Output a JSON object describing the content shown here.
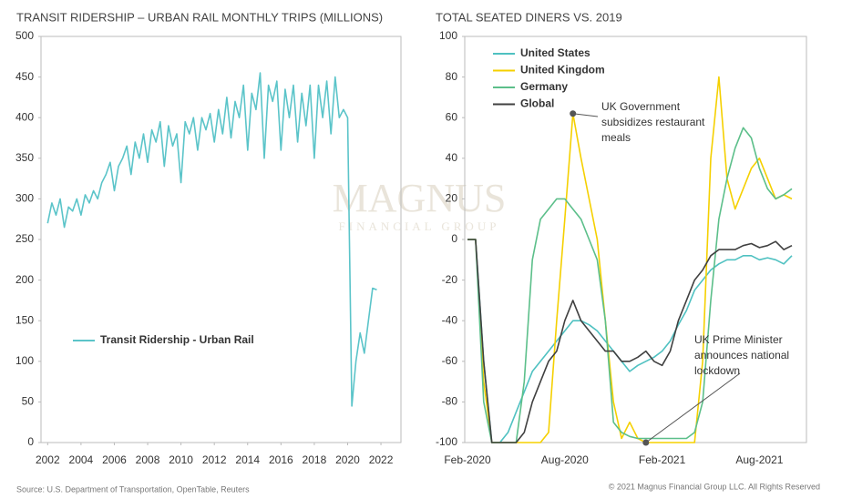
{
  "chart_data": [
    {
      "type": "line",
      "title": "TRANSIT RIDERSHIP – URBAN RAIL MONTHLY TRIPS (MILLIONS)",
      "x": [
        2002,
        2002.25,
        2002.5,
        2002.75,
        2003,
        2003.25,
        2003.5,
        2003.75,
        2004,
        2004.25,
        2004.5,
        2004.75,
        2005,
        2005.25,
        2005.5,
        2005.75,
        2006,
        2006.25,
        2006.5,
        2006.75,
        2007,
        2007.25,
        2007.5,
        2007.75,
        2008,
        2008.25,
        2008.5,
        2008.75,
        2009,
        2009.25,
        2009.5,
        2009.75,
        2010,
        2010.25,
        2010.5,
        2010.75,
        2011,
        2011.25,
        2011.5,
        2011.75,
        2012,
        2012.25,
        2012.5,
        2012.75,
        2013,
        2013.25,
        2013.5,
        2013.75,
        2014,
        2014.25,
        2014.5,
        2014.75,
        2015,
        2015.25,
        2015.5,
        2015.75,
        2016,
        2016.25,
        2016.5,
        2016.75,
        2017,
        2017.25,
        2017.5,
        2017.75,
        2018,
        2018.25,
        2018.5,
        2018.75,
        2019,
        2019.25,
        2019.5,
        2019.75,
        2020,
        2020.25,
        2020.5,
        2020.75,
        2021,
        2021.25,
        2021.5,
        2021.75
      ],
      "series": [
        {
          "name": "Transit Ridership - Urban Rail",
          "color": "#5bc4c9",
          "values": [
            270,
            295,
            280,
            300,
            265,
            290,
            285,
            300,
            280,
            305,
            295,
            310,
            300,
            320,
            330,
            345,
            310,
            340,
            350,
            365,
            330,
            370,
            350,
            380,
            345,
            385,
            370,
            395,
            340,
            390,
            365,
            380,
            320,
            395,
            380,
            400,
            360,
            400,
            385,
            405,
            370,
            410,
            380,
            425,
            375,
            420,
            400,
            440,
            360,
            430,
            410,
            455,
            350,
            440,
            420,
            445,
            360,
            435,
            400,
            440,
            370,
            430,
            390,
            440,
            350,
            440,
            400,
            445,
            380,
            450,
            400,
            410,
            400,
            45,
            100,
            135,
            110,
            150,
            190,
            188
          ]
        }
      ],
      "xlim": [
        2001.6,
        2023.2
      ],
      "xticks": [
        2002,
        2004,
        2006,
        2008,
        2010,
        2012,
        2014,
        2016,
        2018,
        2020,
        2022
      ],
      "ylim": [
        0,
        500
      ],
      "yticks": [
        0,
        50,
        100,
        150,
        200,
        250,
        300,
        350,
        400,
        450,
        500
      ],
      "legend": "lower-left"
    },
    {
      "type": "line",
      "title": "TOTAL SEATED DINERS VS. 2019",
      "categories": [
        "Feb-2020",
        null,
        null,
        null,
        null,
        null,
        null,
        null,
        null,
        null,
        null,
        null,
        "Aug-2020",
        null,
        null,
        null,
        null,
        null,
        null,
        null,
        null,
        null,
        null,
        null,
        "Feb-2021",
        null,
        null,
        null,
        null,
        null,
        null,
        null,
        null,
        null,
        null,
        null,
        "Aug-2021",
        null,
        null,
        null,
        null
      ],
      "series": [
        {
          "name": "United States",
          "color": "#4fc1c1",
          "values": [
            0,
            0,
            -60,
            -100,
            -100,
            -95,
            -85,
            -75,
            -65,
            -60,
            -55,
            -50,
            -45,
            -40,
            -40,
            -42,
            -45,
            -50,
            -55,
            -60,
            -65,
            -62,
            -60,
            -58,
            -55,
            -50,
            -42,
            -35,
            -25,
            -20,
            -15,
            -12,
            -10,
            -10,
            -8,
            -8,
            -10,
            -9,
            -10,
            -12,
            -8
          ]
        },
        {
          "name": "United Kingdom",
          "color": "#f5d000",
          "values": [
            0,
            0,
            -70,
            -100,
            -100,
            -100,
            -100,
            -100,
            -100,
            -100,
            -95,
            -40,
            10,
            62,
            40,
            20,
            0,
            -40,
            -80,
            -98,
            -90,
            -98,
            -100,
            -100,
            -100,
            -100,
            -100,
            -100,
            -100,
            -60,
            40,
            80,
            30,
            15,
            25,
            35,
            40,
            30,
            20,
            22,
            20
          ]
        },
        {
          "name": "Germany",
          "color": "#5cbf8a",
          "values": [
            0,
            0,
            -80,
            -100,
            -100,
            -100,
            -100,
            -70,
            -10,
            10,
            15,
            20,
            20,
            15,
            10,
            0,
            -10,
            -40,
            -90,
            -95,
            -97,
            -98,
            -98,
            -98,
            -98,
            -98,
            -98,
            -98,
            -95,
            -80,
            -30,
            10,
            30,
            45,
            55,
            50,
            35,
            25,
            20,
            22,
            25
          ]
        },
        {
          "name": "Global",
          "color": "#404040",
          "values": [
            0,
            0,
            -60,
            -100,
            -100,
            -100,
            -100,
            -95,
            -80,
            -70,
            -60,
            -55,
            -40,
            -30,
            -40,
            -45,
            -50,
            -55,
            -55,
            -60,
            -60,
            -58,
            -55,
            -60,
            -62,
            -55,
            -40,
            -30,
            -20,
            -15,
            -8,
            -5,
            -5,
            -5,
            -3,
            -2,
            -4,
            -3,
            -1,
            -5,
            -3
          ]
        }
      ],
      "ylim": [
        -100,
        100
      ],
      "yticks": [
        -100,
        -80,
        -60,
        -40,
        -20,
        0,
        20,
        40,
        60,
        80,
        100
      ],
      "legend": "upper-left",
      "annotations": [
        {
          "lines": [
            "UK Government",
            "subsidizes restaurant",
            "meals"
          ]
        },
        {
          "lines": [
            "UK Prime Minister",
            "announces national",
            "lockdown"
          ]
        }
      ]
    }
  ],
  "watermark": [
    "MAGNUS",
    "FINANCIAL GROUP"
  ],
  "footer": {
    "source": "Source: U.S. Department of Transportation, OpenTable, Reuters",
    "copyright": "© 2021 Magnus Financial Group LLC. All Rights Reserved"
  }
}
